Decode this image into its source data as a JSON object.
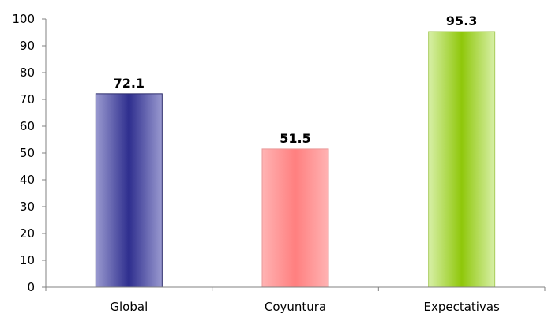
{
  "chart_data": {
    "type": "bar",
    "categories": [
      "Global",
      "Coyuntura",
      "Expectativas"
    ],
    "values": [
      72.1,
      51.5,
      95.3
    ],
    "value_labels": [
      "72.1",
      "51.5",
      "95.3"
    ],
    "ylim": [
      0,
      100
    ],
    "yticks": [
      0,
      10,
      20,
      30,
      40,
      50,
      60,
      70,
      80,
      90,
      100
    ],
    "grid": false,
    "legend": "none",
    "colors": {
      "Global": {
        "edge": "#9a9ad0",
        "center": "#2e2e8e",
        "border": "#2b2b6b"
      },
      "Coyuntura": {
        "edge": "#ffb3b3",
        "center": "#ff7f7f",
        "border": "#e89a9a"
      },
      "Expectativas": {
        "edge": "#d8f0a8",
        "center": "#8fc70a",
        "border": "#a8cc5a"
      }
    }
  }
}
